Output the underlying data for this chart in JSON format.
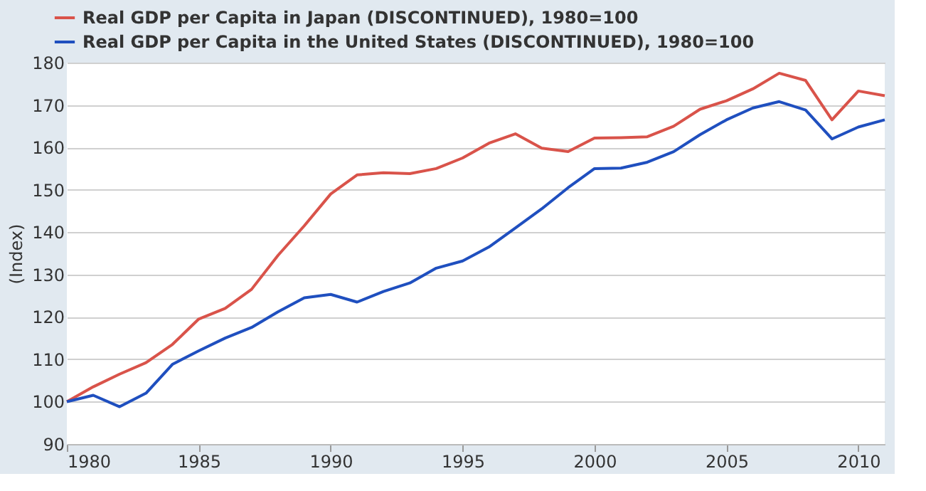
{
  "chart_data": {
    "type": "line",
    "ylabel": "(Index)",
    "x": [
      1980,
      1981,
      1982,
      1983,
      1984,
      1985,
      1986,
      1987,
      1988,
      1989,
      1990,
      1991,
      1992,
      1993,
      1994,
      1995,
      1996,
      1997,
      1998,
      1999,
      2000,
      2001,
      2002,
      2003,
      2004,
      2005,
      2006,
      2007,
      2008,
      2009,
      2010,
      2011
    ],
    "series": [
      {
        "name": "Real GDP per Capita in Japan (DISCONTINUED), 1980=100",
        "color": "#d9534a",
        "values": [
          100,
          103.5,
          106.5,
          109.2,
          113.5,
          119.5,
          122,
          126.5,
          134.5,
          141.5,
          149,
          153.5,
          154,
          153.8,
          155,
          157.5,
          161,
          163.2,
          159.8,
          159,
          162.2,
          162.3,
          162.5,
          165,
          169,
          171,
          173.8,
          177.5,
          175.8,
          166.5,
          173.3,
          172.2
        ]
      },
      {
        "name": "Real GDP per Capita in the United States (DISCONTINUED), 1980=100",
        "color": "#1f4fbf",
        "values": [
          100,
          101.5,
          98.8,
          102,
          108.8,
          112,
          115,
          117.5,
          121.2,
          124.5,
          125.3,
          123.5,
          126,
          128,
          131.5,
          133.2,
          136.5,
          141,
          145.5,
          150.5,
          155,
          155.1,
          156.5,
          159,
          163,
          166.5,
          169.3,
          170.8,
          168.8,
          162,
          164.8,
          166.5
        ]
      }
    ],
    "xlim": [
      1980,
      2011
    ],
    "xticks": [
      1980,
      1985,
      1990,
      1995,
      2000,
      2005,
      2010
    ],
    "ylim": [
      90,
      180
    ],
    "yticks": [
      90,
      100,
      110,
      120,
      130,
      140,
      150,
      160,
      170,
      180
    ],
    "grid": "y",
    "legend": "top left",
    "marker": "none",
    "line_style": "solid"
  }
}
